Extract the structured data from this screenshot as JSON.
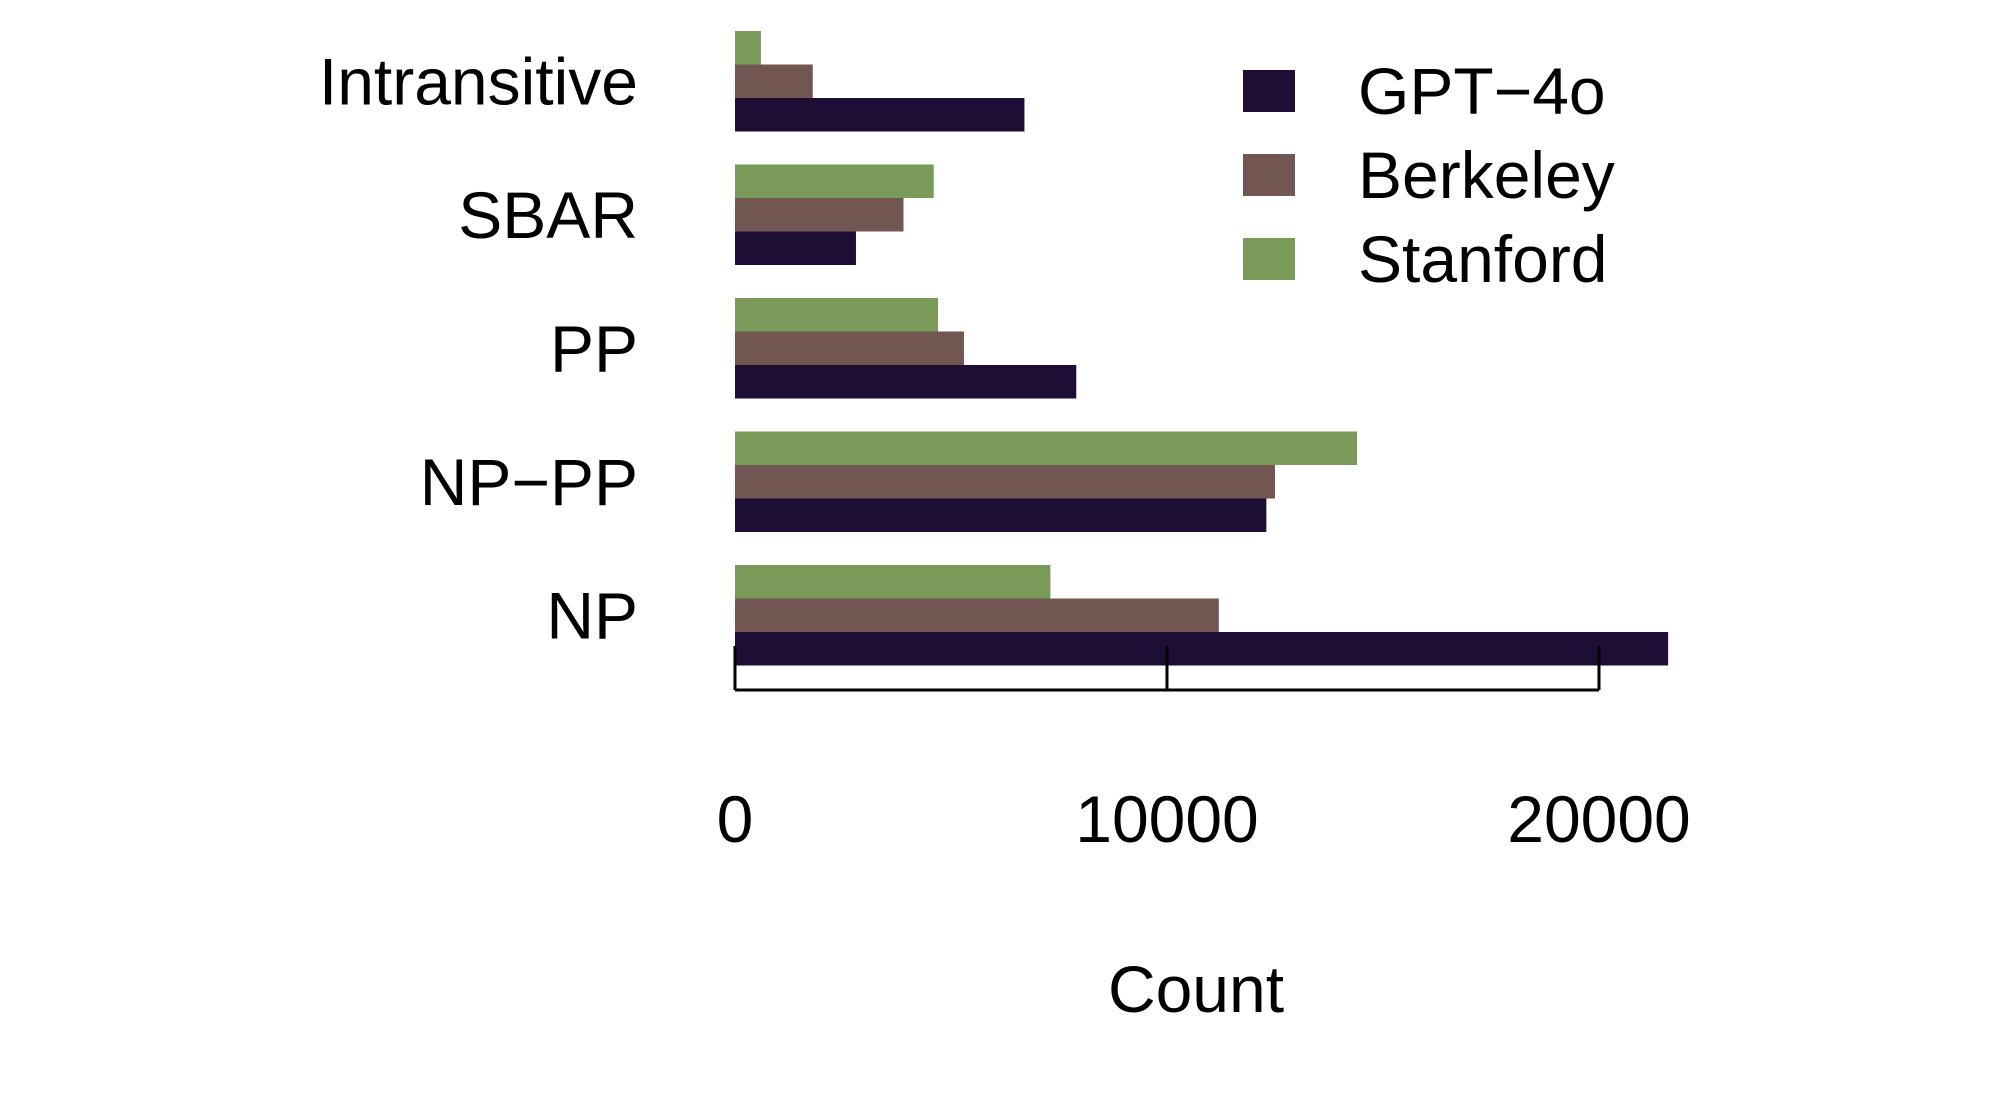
{
  "chart_data": {
    "type": "bar",
    "orientation": "horizontal",
    "categories": [
      "Intransitive",
      "SBAR",
      "PP",
      "NP−PP",
      "NP"
    ],
    "series": [
      {
        "name": "GPT−4o",
        "color": "#1e0e35",
        "values": [
          6700,
          2800,
          7900,
          12300,
          21600
        ]
      },
      {
        "name": "Berkeley",
        "color": "#715651",
        "values": [
          1800,
          3900,
          5300,
          12500,
          11200
        ]
      },
      {
        "name": "Stanford",
        "color": "#7a9a5a",
        "values": [
          600,
          4600,
          4700,
          14400,
          7300
        ]
      }
    ],
    "xlabel": "Count",
    "ylabel": "",
    "title": "",
    "xlim": [
      0,
      21600
    ],
    "xticks": [
      0,
      10000,
      20000
    ],
    "xtick_labels": [
      "0",
      "10000",
      "20000"
    ],
    "grid": false,
    "legend_position": "top-right"
  }
}
